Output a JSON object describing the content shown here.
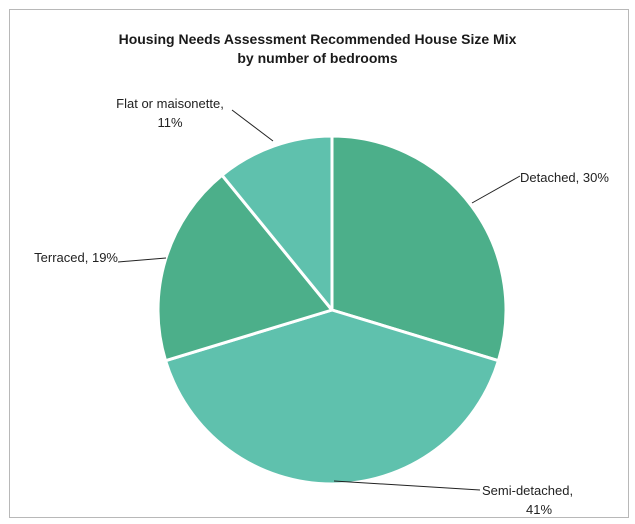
{
  "chart_data": {
    "type": "pie",
    "title": "Housing Needs Assessment Recommended House Size Mix",
    "subtitle": "by number of bedrooms",
    "slices": [
      {
        "name": "Detached",
        "value": 30,
        "label_lines": [
          "Detached, 30%"
        ],
        "color": "#4caf8a"
      },
      {
        "name": "Semi-detached",
        "value": 41,
        "label_lines": [
          "Semi-detached,",
          "41%"
        ],
        "color": "#5fc1ad"
      },
      {
        "name": "Terraced",
        "value": 19,
        "label_lines": [
          "Terraced, 19%"
        ],
        "color": "#4caf8a"
      },
      {
        "name": "Flat or maisonette",
        "value": 11,
        "label_lines": [
          "Flat or maisonette,",
          "11%"
        ],
        "color": "#5fc1ad"
      }
    ],
    "start_angle_deg": 0,
    "direction": "clockwise",
    "legend": "none",
    "data_labels": "outside with leader lines"
  }
}
